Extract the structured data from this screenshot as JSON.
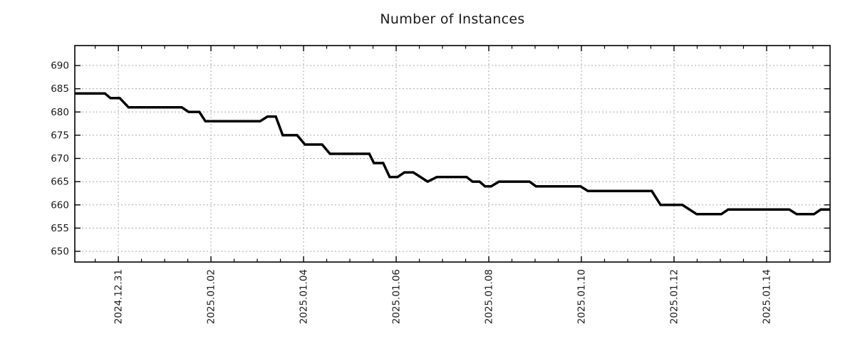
{
  "chart_data": {
    "type": "line",
    "title": "Number of Instances",
    "xlabel": "",
    "ylabel": "",
    "x_unit": "days since 2024-12-31 00:00",
    "xlim": [
      -0.94,
      15.37
    ],
    "ylim": [
      647.7,
      694.3
    ],
    "grid": true,
    "legend": "none",
    "line_color": "#000000",
    "grid_color": "#a8a8a8",
    "border_color": "#000000",
    "background_color": "#ffffff",
    "y_ticks": [
      650,
      655,
      660,
      665,
      670,
      675,
      680,
      685,
      690
    ],
    "x_major_ticks": [
      {
        "t": 0,
        "label": "2024.12.31"
      },
      {
        "t": 2,
        "label": "2025.01.02"
      },
      {
        "t": 4,
        "label": "2025.01.04"
      },
      {
        "t": 6,
        "label": "2025.01.06"
      },
      {
        "t": 8,
        "label": "2025.01.08"
      },
      {
        "t": 10,
        "label": "2025.01.10"
      },
      {
        "t": 12,
        "label": "2025.01.12"
      },
      {
        "t": 14,
        "label": "2025.01.14"
      }
    ],
    "x_minor_tick_interval": 0.5,
    "series": [
      {
        "name": "instances",
        "points": [
          [
            -0.94,
            684
          ],
          [
            -0.29,
            684
          ],
          [
            -0.17,
            683
          ],
          [
            0.03,
            683
          ],
          [
            0.22,
            681
          ],
          [
            1.37,
            681
          ],
          [
            1.52,
            680
          ],
          [
            1.75,
            680
          ],
          [
            1.88,
            678
          ],
          [
            3.06,
            678
          ],
          [
            3.22,
            679
          ],
          [
            3.4,
            679
          ],
          [
            3.55,
            675
          ],
          [
            3.86,
            675
          ],
          [
            4.03,
            673
          ],
          [
            4.4,
            673
          ],
          [
            4.57,
            671
          ],
          [
            5.42,
            671
          ],
          [
            5.52,
            669
          ],
          [
            5.72,
            669
          ],
          [
            5.86,
            666
          ],
          [
            6.03,
            666
          ],
          [
            6.18,
            667
          ],
          [
            6.37,
            667
          ],
          [
            6.68,
            665
          ],
          [
            6.88,
            666
          ],
          [
            7.52,
            666
          ],
          [
            7.65,
            665
          ],
          [
            7.8,
            665
          ],
          [
            7.92,
            664
          ],
          [
            8.05,
            664
          ],
          [
            8.22,
            665
          ],
          [
            8.88,
            665
          ],
          [
            9.02,
            664
          ],
          [
            9.98,
            664
          ],
          [
            10.14,
            663
          ],
          [
            11.52,
            663
          ],
          [
            11.71,
            660
          ],
          [
            12.18,
            660
          ],
          [
            12.49,
            658
          ],
          [
            13.02,
            658
          ],
          [
            13.17,
            659
          ],
          [
            14.49,
            659
          ],
          [
            14.65,
            658
          ],
          [
            15.02,
            658
          ],
          [
            15.17,
            659
          ],
          [
            15.37,
            659
          ]
        ]
      }
    ]
  }
}
